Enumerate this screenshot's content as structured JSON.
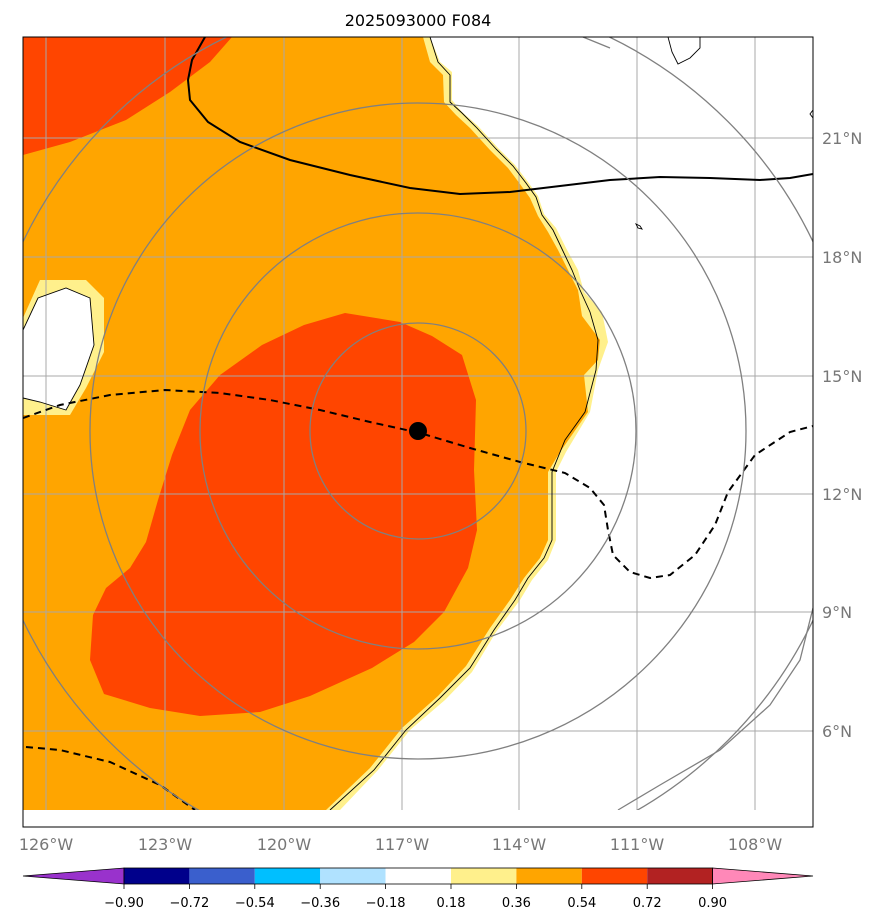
{
  "chart_data": {
    "type": "contour_map",
    "title": "2025093000 F084",
    "lon_range": [
      -126.5,
      -106.5
    ],
    "lat_range": [
      3.7,
      23.7
    ],
    "lon_ticks": [
      {
        "value": -126,
        "label": "126°W"
      },
      {
        "value": -123,
        "label": "123°W"
      },
      {
        "value": -120,
        "label": "120°W"
      },
      {
        "value": -117,
        "label": "117°W"
      },
      {
        "value": -114,
        "label": "114°W"
      },
      {
        "value": -111,
        "label": "111°W"
      },
      {
        "value": -108,
        "label": "108°W"
      }
    ],
    "lat_ticks": [
      {
        "value": 21,
        "label": "21°N"
      },
      {
        "value": 18,
        "label": "18°N"
      },
      {
        "value": 15,
        "label": "15°N"
      },
      {
        "value": 12,
        "label": "12°N"
      },
      {
        "value": 9,
        "label": "9°N"
      },
      {
        "value": 6,
        "label": "6°N"
      }
    ],
    "storm_center": {
      "lon": -116.6,
      "lat": 13.6
    },
    "range_rings_deg": [
      2.7,
      5.5,
      8.25
    ],
    "colorbar": {
      "levels": [
        "−0.90",
        "−0.72",
        "−0.54",
        "−0.36",
        "−0.18",
        "0.18",
        "0.36",
        "0.54",
        "0.72",
        "0.90"
      ],
      "colors": [
        "#9932cc",
        "#00008b",
        "#3a5fcd",
        "#00bfff",
        "#b0e2ff",
        "#ffffff",
        "#fff08c",
        "#ffa500",
        "#ff4500",
        "#b22222",
        "#ff88b8"
      ]
    },
    "grid": true
  }
}
